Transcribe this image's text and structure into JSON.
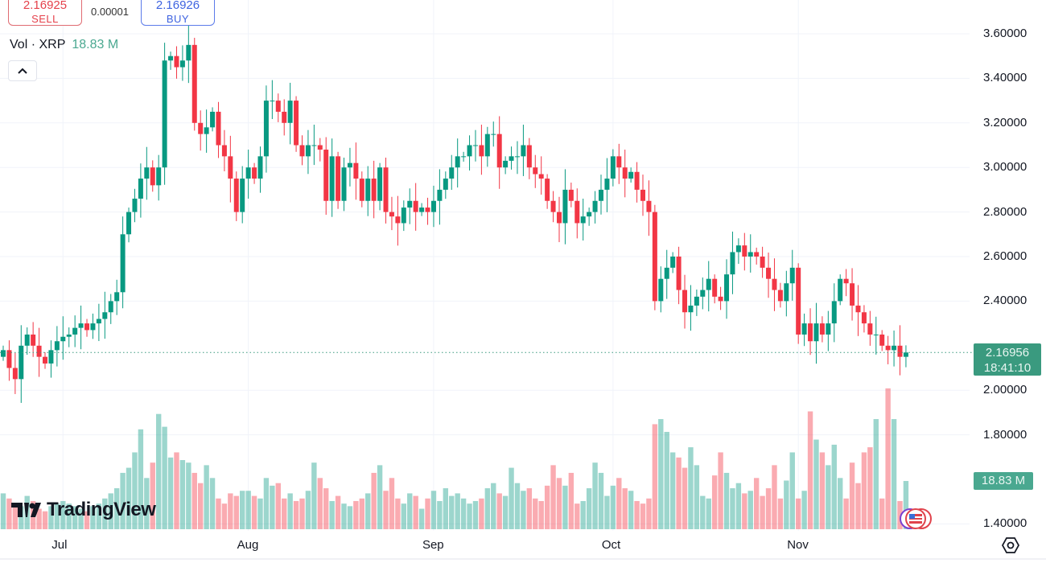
{
  "trade": {
    "sell_price": "2.16925",
    "sell_label": "SELL",
    "spread": "0.00001",
    "buy_price": "2.16926",
    "buy_label": "BUY"
  },
  "legend": {
    "label": "Vol · XRP",
    "value": "18.83 M"
  },
  "last_price": {
    "price": "2.16956",
    "countdown": "18:41:10"
  },
  "volume_tag": "18.83 M",
  "logo": "TradingView",
  "colors": {
    "up": "#089981",
    "down": "#f23645",
    "vol_up": "rgba(8,153,129,0.4)",
    "vol_down": "rgba(242,54,69,0.42)"
  },
  "chart_data": {
    "type": "candlestick",
    "symbol": "XRP",
    "interval": "1D",
    "price_ticks": [
      "3.60000",
      "3.40000",
      "3.20000",
      "3.00000",
      "2.80000",
      "2.60000",
      "2.40000",
      "2.00000",
      "1.80000",
      "1.40000"
    ],
    "price_tick_values": [
      3.6,
      3.4,
      3.2,
      3.0,
      2.8,
      2.6,
      2.4,
      2.0,
      1.8,
      1.4
    ],
    "ylim": [
      1.4,
      3.6
    ],
    "x_ticks": [
      "Jul",
      "Aug",
      "Sep",
      "Oct",
      "Nov"
    ],
    "x_tick_index": [
      10,
      41,
      72,
      102,
      133
    ],
    "closes": [
      2.18,
      2.1,
      2.05,
      2.2,
      2.25,
      2.2,
      2.15,
      2.12,
      2.18,
      2.22,
      2.24,
      2.25,
      2.28,
      2.3,
      2.27,
      2.3,
      2.32,
      2.35,
      2.4,
      2.44,
      2.7,
      2.8,
      2.86,
      2.95,
      3.0,
      2.92,
      3.0,
      3.48,
      3.5,
      3.45,
      3.48,
      3.55,
      3.2,
      3.15,
      3.18,
      3.25,
      3.1,
      3.05,
      2.95,
      2.8,
      2.95,
      3.0,
      2.95,
      3.05,
      3.3,
      3.3,
      3.25,
      3.2,
      3.3,
      3.1,
      3.05,
      3.1,
      3.1,
      3.08,
      2.85,
      3.05,
      2.85,
      3.0,
      3.02,
      2.95,
      2.85,
      2.95,
      2.85,
      3.0,
      2.8,
      2.78,
      2.75,
      2.82,
      2.85,
      2.8,
      2.82,
      2.8,
      2.85,
      2.9,
      2.95,
      3.0,
      3.05,
      3.05,
      3.1,
      3.1,
      3.05,
      3.15,
      3.15,
      3.0,
      3.03,
      3.05,
      3.05,
      3.1,
      3.0,
      2.97,
      2.95,
      2.85,
      2.8,
      2.75,
      2.9,
      2.85,
      2.75,
      2.78,
      2.8,
      2.85,
      2.9,
      2.95,
      3.05,
      3.0,
      2.95,
      2.98,
      2.9,
      2.85,
      2.8,
      2.4,
      2.5,
      2.55,
      2.6,
      2.45,
      2.35,
      2.38,
      2.42,
      2.45,
      2.5,
      2.42,
      2.4,
      2.52,
      2.62,
      2.65,
      2.6,
      2.62,
      2.6,
      2.55,
      2.5,
      2.45,
      2.4,
      2.48,
      2.55,
      2.25,
      2.3,
      2.22,
      2.3,
      2.25,
      2.3,
      2.4,
      2.5,
      2.48,
      2.38,
      2.35,
      2.3,
      2.25,
      2.25,
      2.2,
      2.18,
      2.2,
      2.15,
      2.16956
    ],
    "volumes_m": [
      14,
      12,
      10,
      9,
      13,
      11,
      8,
      7,
      9,
      10,
      11,
      10,
      9,
      8,
      7,
      9,
      10,
      12,
      14,
      16,
      22,
      24,
      30,
      39,
      20,
      26,
      45,
      40,
      28,
      30,
      27,
      26,
      22,
      18,
      25,
      20,
      12,
      10,
      14,
      13,
      15,
      15,
      13,
      12,
      20,
      17,
      18,
      12,
      14,
      11,
      12,
      15,
      26,
      20,
      16,
      11,
      13,
      10,
      9,
      11,
      12,
      14,
      22,
      25,
      15,
      20,
      12,
      10,
      14,
      13,
      8,
      12,
      15,
      11,
      16,
      13,
      14,
      12,
      10,
      11,
      12,
      16,
      18,
      14,
      13,
      24,
      18,
      15,
      16,
      12,
      11,
      17,
      25,
      20,
      17,
      22,
      10,
      11,
      16,
      26,
      22,
      13,
      17,
      20,
      16,
      15,
      11,
      10,
      12,
      41,
      43,
      38,
      30,
      28,
      24,
      32,
      25,
      13,
      12,
      21,
      30,
      22,
      16,
      18,
      14,
      15,
      20,
      13,
      16,
      25,
      12,
      19,
      30,
      12,
      15,
      46,
      35,
      30,
      25,
      33,
      20,
      12,
      26,
      18,
      30,
      32,
      43,
      12,
      55,
      43,
      11,
      18.83
    ]
  }
}
